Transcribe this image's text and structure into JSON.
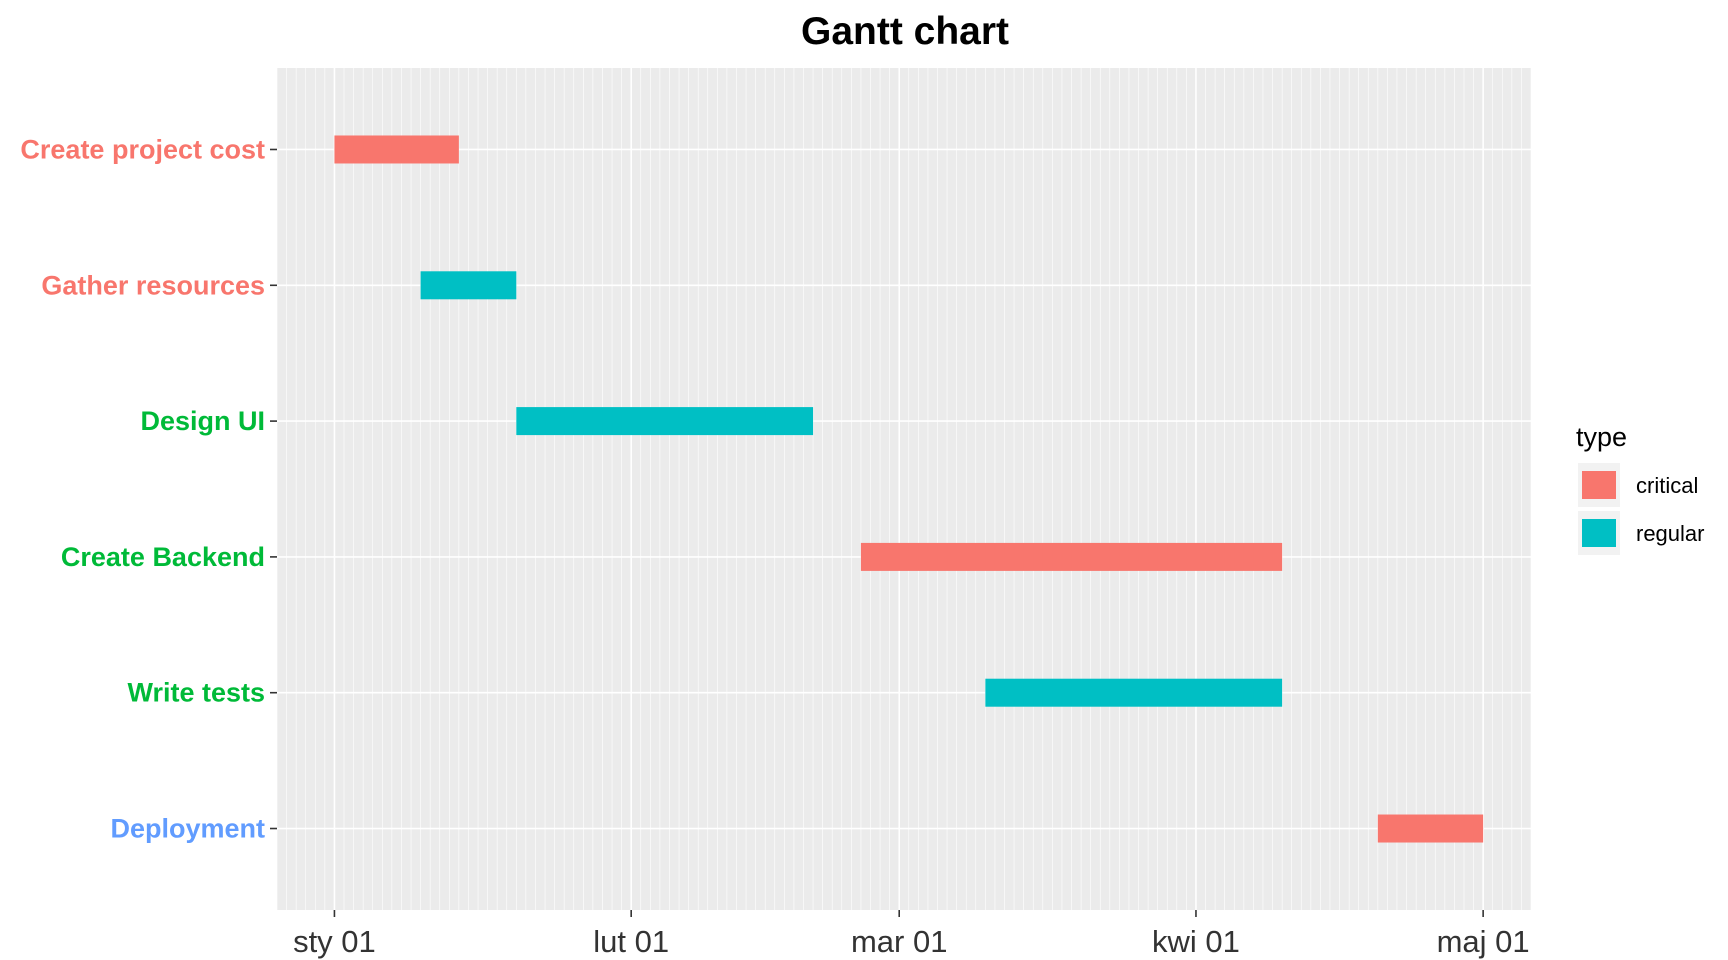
{
  "chart_data": {
    "type": "gantt",
    "title": "Gantt chart",
    "xlabel": "",
    "ylabel": "",
    "x_axis": {
      "type": "date",
      "range": [
        "2024-12-26",
        "2025-05-06"
      ],
      "ticks": [
        {
          "date": "2025-01-01",
          "label": "sty 01"
        },
        {
          "date": "2025-02-01",
          "label": "lut 01"
        },
        {
          "date": "2025-03-01",
          "label": "mar 01"
        },
        {
          "date": "2025-04-01",
          "label": "kwi 01"
        },
        {
          "date": "2025-05-01",
          "label": "maj 01"
        }
      ],
      "minor_grid": "daily"
    },
    "tasks": [
      {
        "name": "Create project cost",
        "start": "2025-01-01",
        "end": "2025-01-14",
        "type": "critical",
        "label_color": "#F8766D"
      },
      {
        "name": "Gather resources",
        "start": "2025-01-10",
        "end": "2025-01-20",
        "type": "regular",
        "label_color": "#F8766D"
      },
      {
        "name": "Design UI",
        "start": "2025-01-20",
        "end": "2025-02-20",
        "type": "regular",
        "label_color": "#00BA38"
      },
      {
        "name": "Create Backend",
        "start": "2025-02-25",
        "end": "2025-04-10",
        "type": "critical",
        "label_color": "#00BA38"
      },
      {
        "name": "Write tests",
        "start": "2025-03-10",
        "end": "2025-04-10",
        "type": "regular",
        "label_color": "#00BA38"
      },
      {
        "name": "Deployment",
        "start": "2025-04-20",
        "end": "2025-05-01",
        "type": "critical",
        "label_color": "#619CFF"
      }
    ],
    "legend": {
      "title": "type",
      "position": "right",
      "items": [
        {
          "label": "critical",
          "color": "#F8766D"
        },
        {
          "label": "regular",
          "color": "#00BFC4"
        }
      ]
    },
    "colors": {
      "panel_background": "#EBEBEB",
      "grid": "#FFFFFF",
      "critical": "#F8766D",
      "regular": "#00BFC4"
    }
  }
}
